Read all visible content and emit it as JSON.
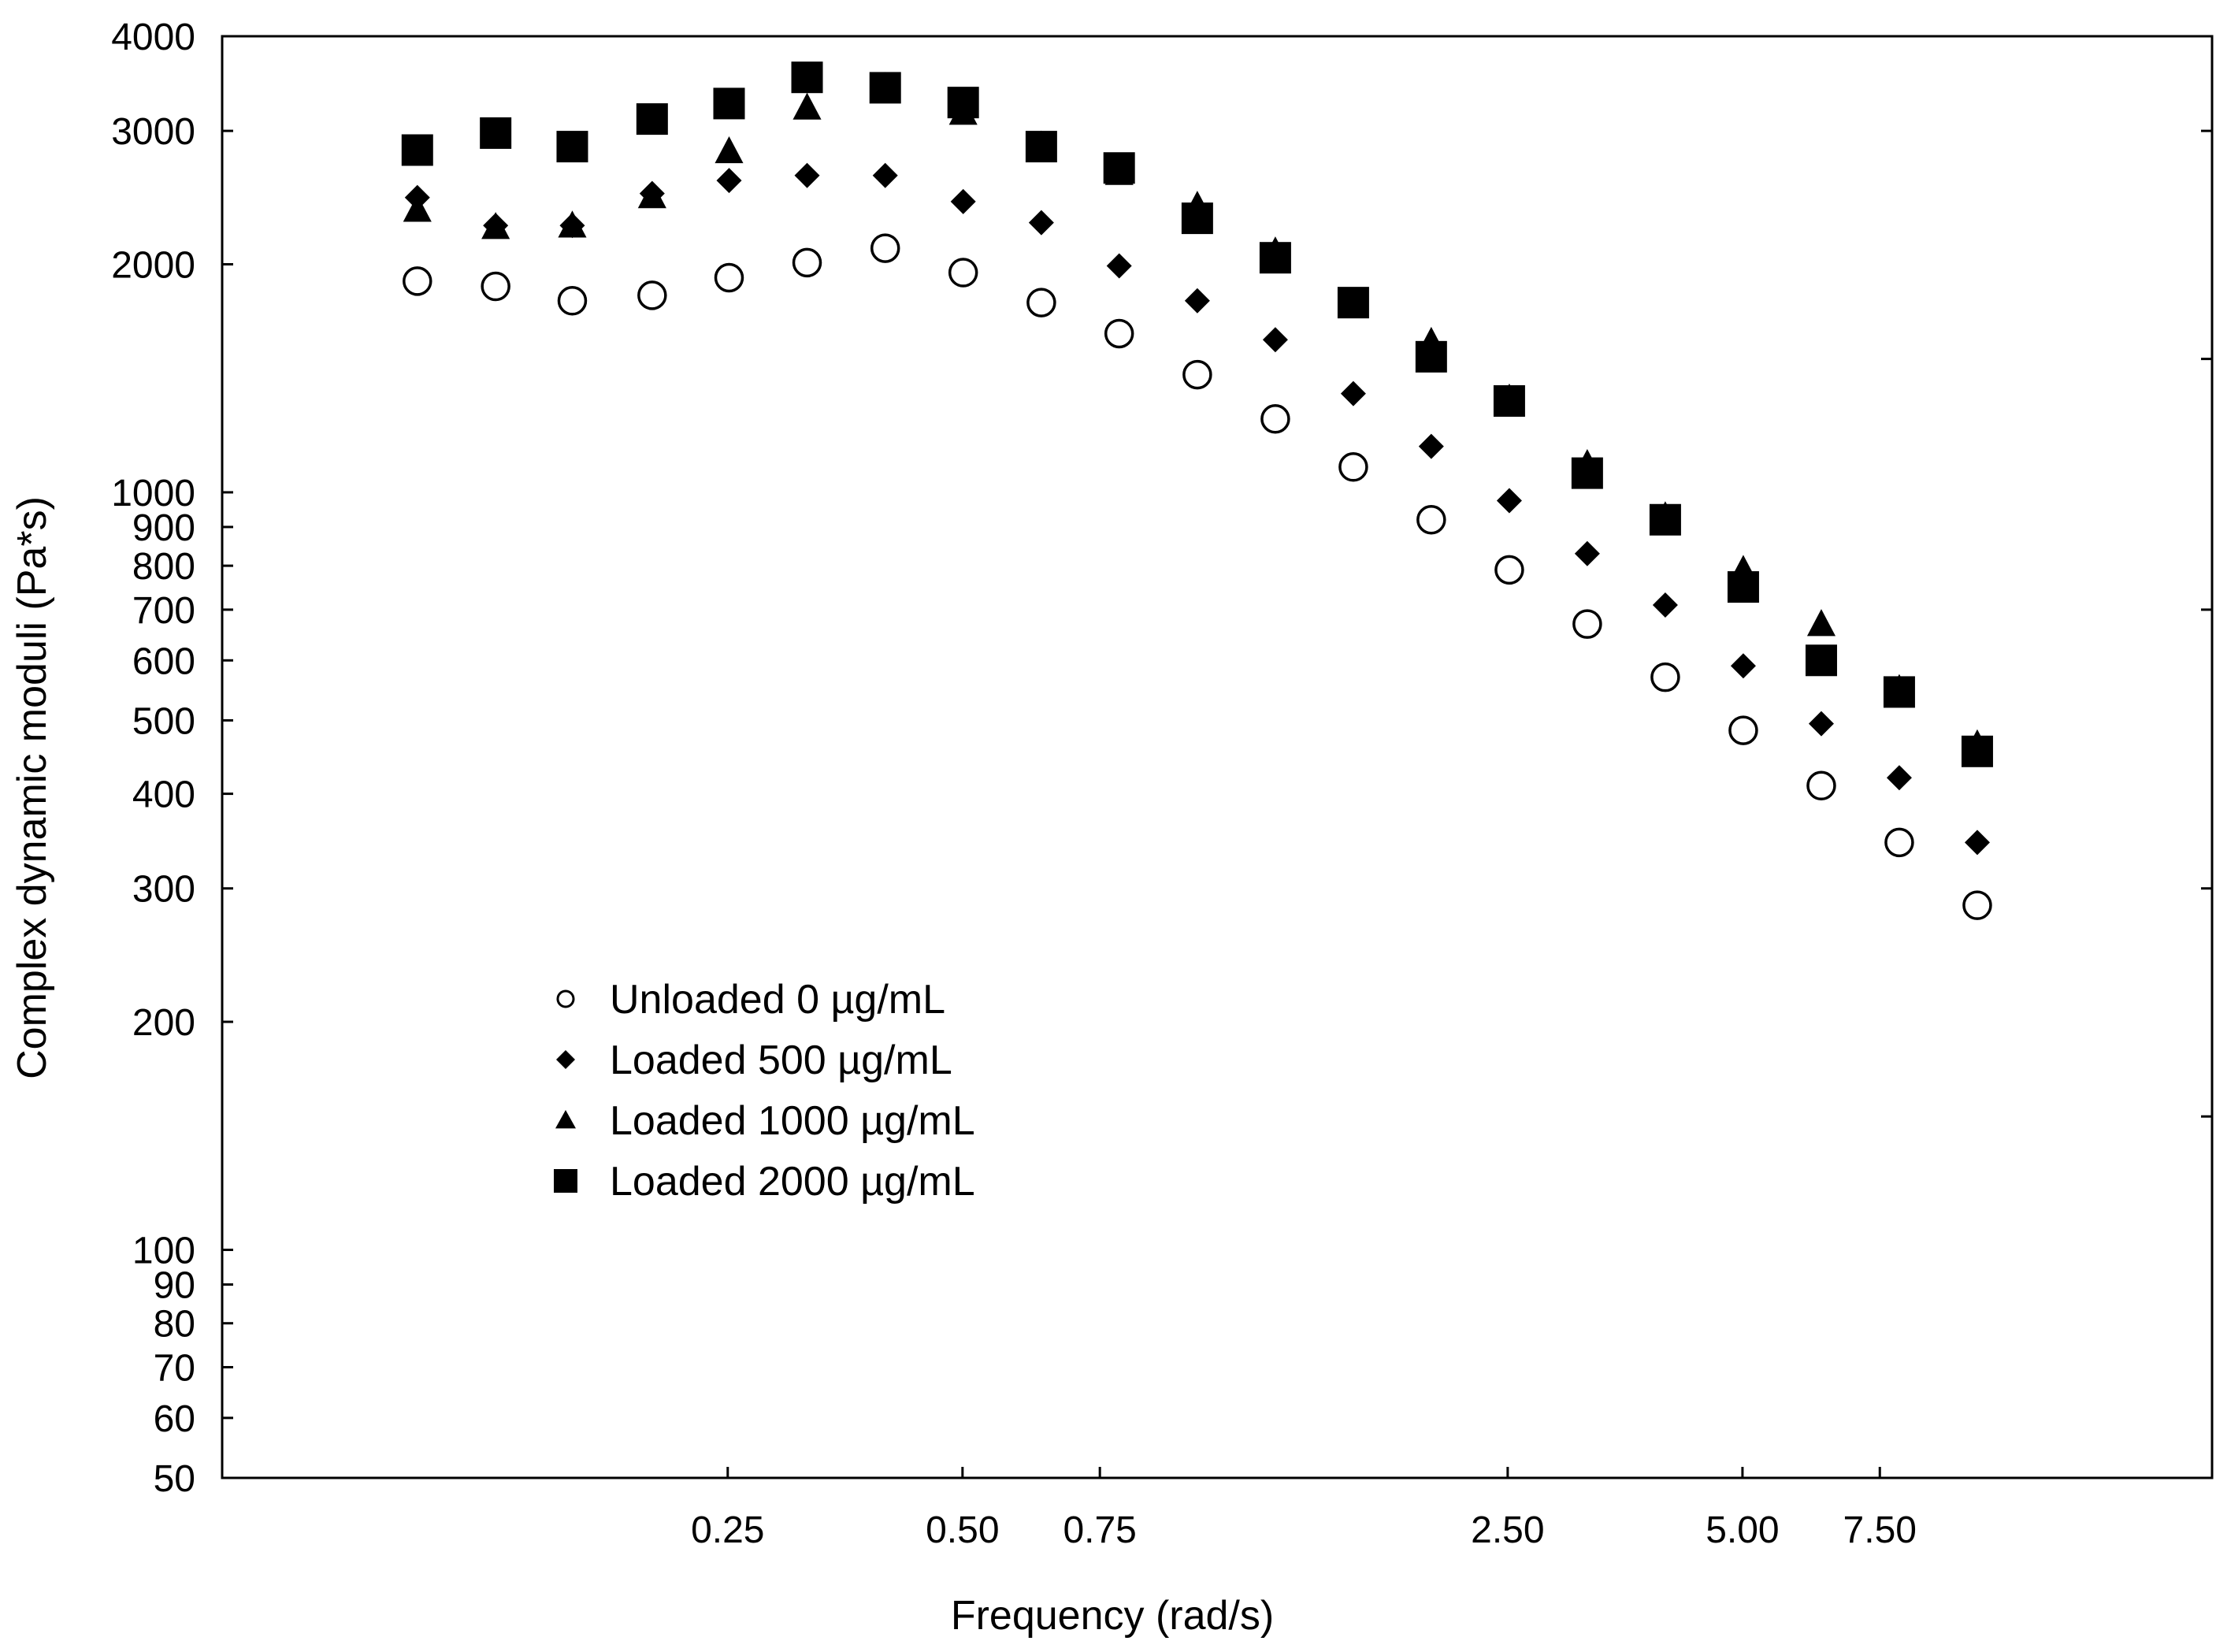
{
  "chart_data": {
    "type": "scatter",
    "title": "",
    "xlabel": "Frequency (rad/s)",
    "ylabel": "Complex dynamic moduli (Pa*s)",
    "xscale": "log",
    "yscale": "log",
    "xlim": [
      0.0562,
      20.0
    ],
    "ylim": [
      50,
      4000
    ],
    "x_ticks": [
      {
        "value": 0.25,
        "label": "0.25"
      },
      {
        "value": 0.5,
        "label": "0.50"
      },
      {
        "value": 0.75,
        "label": "0.75"
      },
      {
        "value": 2.5,
        "label": "2.50"
      },
      {
        "value": 5.0,
        "label": "5.00"
      },
      {
        "value": 7.5,
        "label": "7.50"
      }
    ],
    "y_ticks": [
      {
        "value": 4000,
        "label": "4000"
      },
      {
        "value": 3000,
        "label": "3000"
      },
      {
        "value": 2000,
        "label": "2000"
      },
      {
        "value": 1000,
        "label": "1000"
      },
      {
        "value": 900,
        "label": "900"
      },
      {
        "value": 800,
        "label": "800"
      },
      {
        "value": 700,
        "label": "700"
      },
      {
        "value": 600,
        "label": "600"
      },
      {
        "value": 500,
        "label": "500"
      },
      {
        "value": 400,
        "label": "400"
      },
      {
        "value": 300,
        "label": "300"
      },
      {
        "value": 200,
        "label": "200"
      },
      {
        "value": 100,
        "label": "100"
      },
      {
        "value": 90,
        "label": "90"
      },
      {
        "value": 80,
        "label": "80"
      },
      {
        "value": 70,
        "label": "70"
      },
      {
        "value": 60,
        "label": "60"
      },
      {
        "value": 50,
        "label": "50"
      }
    ],
    "right_minor_ticks": [
      3000,
      1500,
      700,
      300,
      150
    ],
    "grid": false,
    "legend_position": "lower-left",
    "x": [
      0.1,
      0.126,
      0.158,
      0.2,
      0.251,
      0.316,
      0.398,
      0.501,
      0.631,
      0.794,
      1.0,
      1.259,
      1.585,
      1.995,
      2.512,
      3.162,
      3.981,
      5.012,
      6.31,
      7.943,
      10.0
    ],
    "series": [
      {
        "name": "Unloaded 0 µg/mL",
        "marker": "circle-open",
        "values": [
          1900,
          1870,
          1790,
          1820,
          1920,
          2010,
          2100,
          1950,
          1780,
          1620,
          1430,
          1250,
          1080,
          920,
          790,
          670,
          570,
          485,
          410,
          345,
          285
        ]
      },
      {
        "name": "Loaded 500 µg/mL",
        "marker": "diamond",
        "values": [
          2450,
          2250,
          2250,
          2480,
          2580,
          2620,
          2620,
          2420,
          2270,
          1990,
          1790,
          1590,
          1350,
          1150,
          975,
          830,
          710,
          590,
          495,
          420,
          345
        ]
      },
      {
        "name": "Loaded 1000 µg/mL",
        "marker": "triangle",
        "values": [
          2360,
          2240,
          2250,
          2460,
          2820,
          3220,
          3430,
          3170,
          2870,
          2640,
          2390,
          2080,
          1780,
          1580,
          1330,
          1090,
          930,
          790,
          670,
          550,
          465
        ]
      },
      {
        "name": "Loaded 2000 µg/mL",
        "marker": "square",
        "values": [
          2830,
          2980,
          2860,
          3110,
          3260,
          3530,
          3420,
          3270,
          2860,
          2680,
          2300,
          2040,
          1780,
          1510,
          1320,
          1060,
          920,
          750,
          600,
          545,
          455
        ]
      }
    ]
  }
}
